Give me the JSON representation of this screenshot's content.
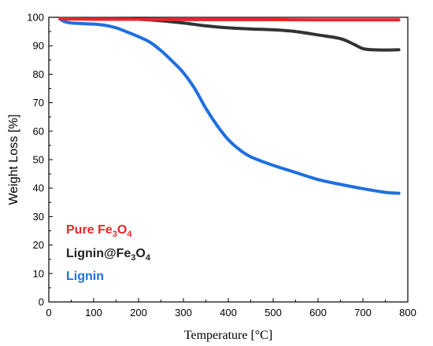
{
  "chart_data": {
    "type": "line",
    "xlabel": "Temperature [°C]",
    "ylabel": "Weight Loss [%]",
    "xlim": [
      0,
      800
    ],
    "ylim": [
      0,
      100
    ],
    "xticks": [
      0,
      100,
      200,
      300,
      400,
      500,
      600,
      700,
      800
    ],
    "yticks": [
      0,
      10,
      20,
      30,
      40,
      50,
      60,
      70,
      80,
      90,
      100
    ],
    "grid": false,
    "legend_position": "bottom-left",
    "series": [
      {
        "name": "Pure Fe3O4",
        "name_main": "Pure Fe",
        "name_sub1": "3",
        "name_mid": "O",
        "name_sub2": "4",
        "color": "#e8262a",
        "x": [
          25,
          40,
          100,
          200,
          300,
          400,
          500,
          600,
          700,
          780
        ],
        "y": [
          99.6,
          99.4,
          99.3,
          99.3,
          99.2,
          99.2,
          99.2,
          99.1,
          99.1,
          99.1
        ]
      },
      {
        "name": "Lignin@Fe3O4",
        "name_main": "Lignin@Fe",
        "name_sub1": "3",
        "name_mid": "O",
        "name_sub2": "4",
        "color": "#333333",
        "x": [
          25,
          50,
          100,
          150,
          200,
          250,
          300,
          350,
          400,
          450,
          500,
          550,
          600,
          650,
          680,
          700,
          720,
          750,
          780
        ],
        "y": [
          99.5,
          99.6,
          99.6,
          99.5,
          99.3,
          98.8,
          98.0,
          97.0,
          96.3,
          95.9,
          95.6,
          95.0,
          93.8,
          92.5,
          90.5,
          89.0,
          88.6,
          88.5,
          88.6
        ]
      },
      {
        "name": "Lignin",
        "name_main": "Lignin",
        "color": "#1f6fe0",
        "x": [
          25,
          35,
          50,
          75,
          100,
          125,
          150,
          175,
          200,
          225,
          250,
          275,
          300,
          325,
          350,
          375,
          400,
          425,
          450,
          500,
          550,
          600,
          650,
          700,
          750,
          780
        ],
        "y": [
          99.4,
          98.5,
          98.0,
          97.8,
          97.6,
          97.2,
          96.3,
          94.8,
          93.2,
          91.3,
          88.3,
          84.6,
          80.5,
          75.0,
          68.0,
          62.0,
          57.0,
          53.5,
          51.0,
          48.0,
          45.5,
          43.0,
          41.3,
          39.8,
          38.5,
          38.2
        ]
      }
    ]
  }
}
